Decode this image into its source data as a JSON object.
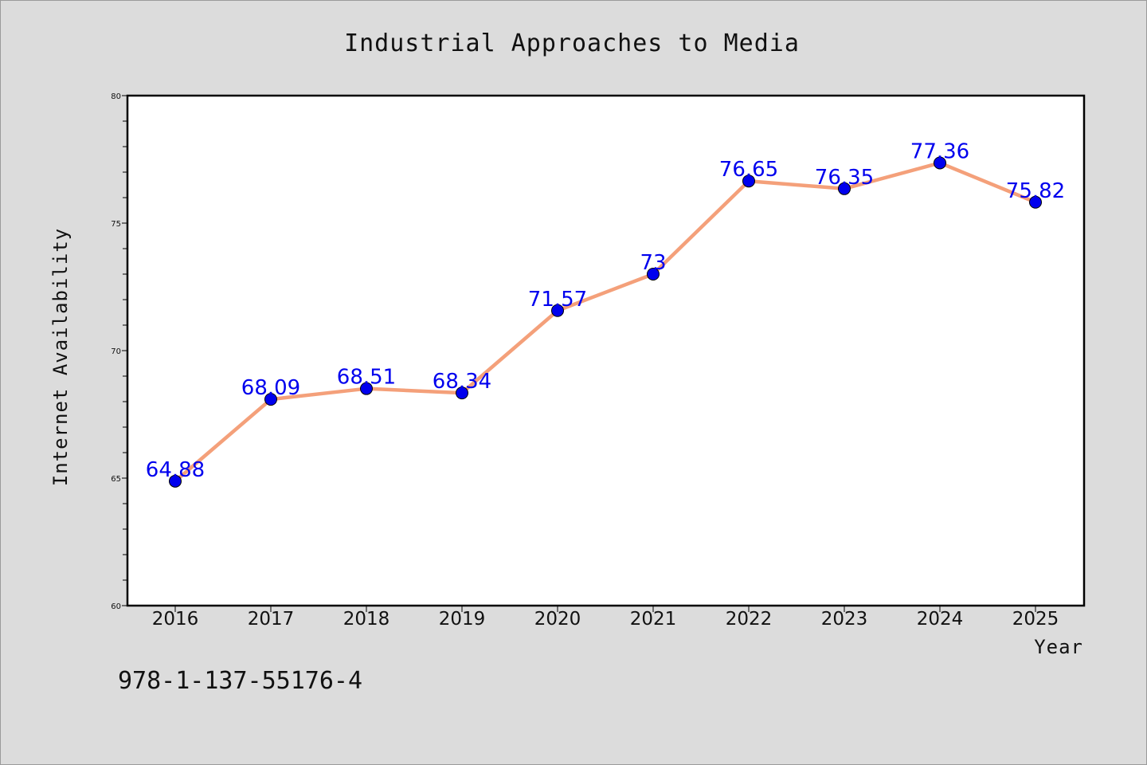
{
  "chart_data": {
    "type": "line",
    "title": "Industrial Approaches to Media",
    "xlabel": "Year",
    "ylabel": "Internet Availability",
    "x": [
      "2016",
      "2017",
      "2018",
      "2019",
      "2020",
      "2021",
      "2022",
      "2023",
      "2024",
      "2025"
    ],
    "series": [
      {
        "values": [
          64.88,
          68.09,
          68.51,
          68.34,
          71.57,
          73,
          76.65,
          76.35,
          77.36,
          75.82
        ],
        "labels": [
          "64.88",
          "68.09",
          "68.51",
          "68.34",
          "71.57",
          "73",
          "76.65",
          "76.35",
          "77.36",
          "75.82"
        ],
        "line_color": "#f4a07a",
        "marker_color": "#0000ee"
      }
    ],
    "ylim": [
      60,
      80
    ],
    "yticks": [
      60,
      65,
      70,
      75,
      80
    ],
    "grid": false,
    "legend": "none",
    "annotation": "978-1-137-55176-4"
  }
}
